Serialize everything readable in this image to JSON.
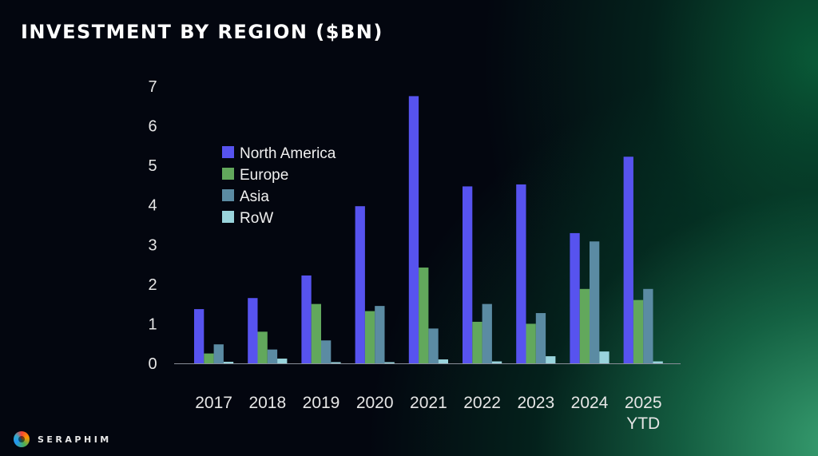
{
  "title": "INVESTMENT BY REGION ($BN)",
  "logo": {
    "text": "SERAPHIM",
    "icon": "seraphim-logo-icon"
  },
  "chart_data": {
    "type": "bar",
    "title": "INVESTMENT BY REGION ($BN)",
    "xlabel": "",
    "ylabel": "",
    "ylim": [
      0,
      7
    ],
    "yticks": [
      "0",
      "1",
      "2",
      "3",
      "4",
      "5",
      "6",
      "7"
    ],
    "grid": false,
    "legend_position": "top-left",
    "categories": [
      "2017",
      "2018",
      "2019",
      "2020",
      "2021",
      "2022",
      "2023",
      "2024",
      "2025\nYTD"
    ],
    "category_labels": [
      [
        "2017"
      ],
      [
        "2018"
      ],
      [
        "2019"
      ],
      [
        "2020"
      ],
      [
        "2021"
      ],
      [
        "2022"
      ],
      [
        "2023"
      ],
      [
        "2024"
      ],
      [
        "2025",
        "YTD"
      ]
    ],
    "series": [
      {
        "name": "North America",
        "color": "#5753ef",
        "values": [
          1.37,
          1.65,
          2.22,
          3.97,
          6.75,
          4.47,
          4.52,
          3.29,
          5.22
        ]
      },
      {
        "name": "Europe",
        "color": "#62a85c",
        "values": [
          0.25,
          0.8,
          1.5,
          1.32,
          2.42,
          1.05,
          1.0,
          1.88,
          1.6
        ]
      },
      {
        "name": "Asia",
        "color": "#5b8ba3",
        "values": [
          0.48,
          0.35,
          0.58,
          1.45,
          0.88,
          1.5,
          1.27,
          3.08,
          1.88
        ]
      },
      {
        "name": "RoW",
        "color": "#99d4dc",
        "values": [
          0.04,
          0.12,
          0.02,
          0.01,
          0.1,
          0.05,
          0.18,
          0.3,
          0.05
        ]
      }
    ]
  }
}
